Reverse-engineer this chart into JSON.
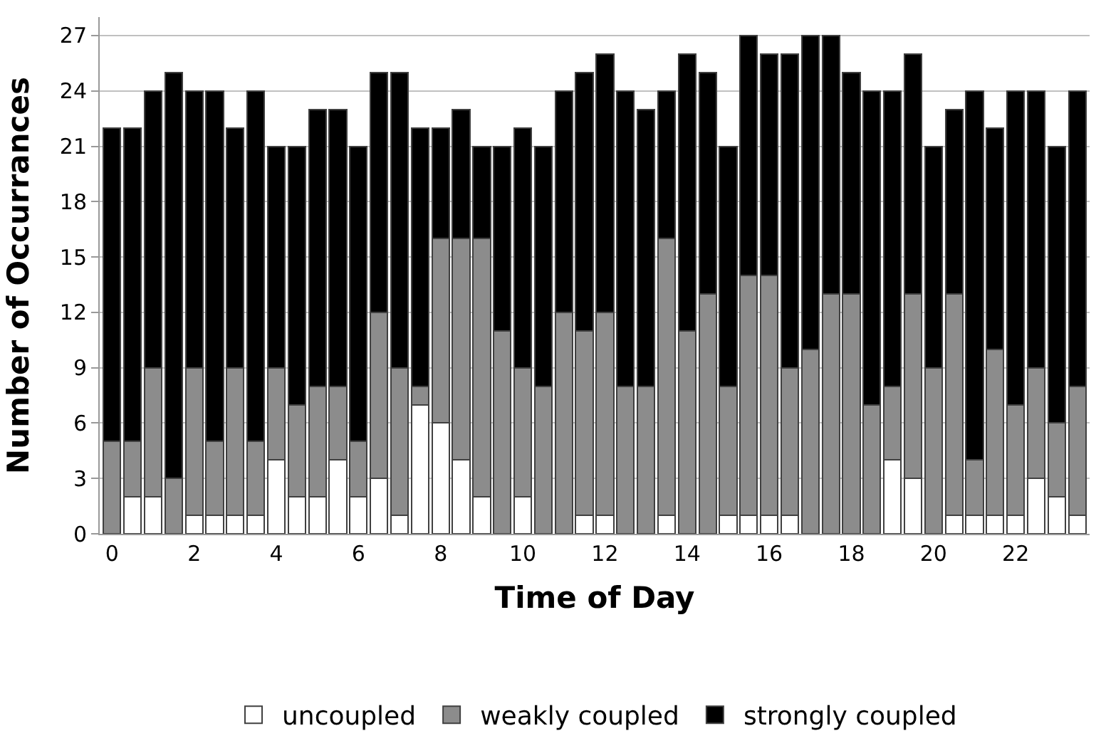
{
  "chart_data": {
    "type": "bar",
    "stacked": true,
    "xlabel": "Time of Day",
    "ylabel": "Number of Occurrances",
    "categories": [
      "0",
      null,
      null,
      null,
      "2",
      null,
      null,
      null,
      "4",
      null,
      null,
      null,
      "6",
      null,
      null,
      null,
      "8",
      null,
      null,
      null,
      "10",
      null,
      null,
      null,
      "12",
      null,
      null,
      null,
      "14",
      null,
      null,
      null,
      "16",
      null,
      null,
      null,
      "18",
      null,
      null,
      null,
      "20",
      null,
      null,
      null,
      "22",
      null,
      null,
      null
    ],
    "series": [
      {
        "name": "uncoupled",
        "color": "#ffffff",
        "values": [
          0,
          2,
          2,
          0,
          1,
          1,
          1,
          1,
          4,
          2,
          2,
          4,
          2,
          3,
          1,
          7,
          6,
          4,
          2,
          0,
          2,
          0,
          0,
          1,
          1,
          0,
          0,
          1,
          0,
          0,
          1,
          1,
          1,
          1,
          0,
          0,
          0,
          0,
          4,
          3,
          0,
          1,
          1,
          1,
          1,
          3,
          2,
          1
        ]
      },
      {
        "name": "weakly coupled",
        "color": "#8c8c8c",
        "values": [
          5,
          3,
          7,
          3,
          8,
          4,
          8,
          4,
          5,
          5,
          6,
          4,
          3,
          9,
          8,
          1,
          10,
          12,
          14,
          11,
          7,
          8,
          12,
          10,
          11,
          8,
          8,
          15,
          11,
          13,
          7,
          13,
          13,
          8,
          10,
          13,
          13,
          7,
          4,
          10,
          9,
          12,
          3,
          9,
          6,
          6,
          4,
          7
        ]
      },
      {
        "name": "strongly coupled",
        "color": "#000000",
        "values": [
          17,
          17,
          15,
          22,
          15,
          19,
          13,
          19,
          12,
          14,
          15,
          15,
          16,
          13,
          16,
          14,
          6,
          7,
          5,
          10,
          13,
          13,
          12,
          14,
          14,
          16,
          15,
          8,
          15,
          12,
          13,
          13,
          12,
          17,
          17,
          14,
          12,
          17,
          16,
          13,
          12,
          10,
          20,
          12,
          17,
          15,
          15,
          16
        ]
      }
    ],
    "ylim": [
      0,
      28
    ],
    "yticks": [
      0,
      3,
      6,
      9,
      12,
      15,
      18,
      21,
      24,
      27
    ],
    "grid": "y",
    "legend": "bottom"
  }
}
